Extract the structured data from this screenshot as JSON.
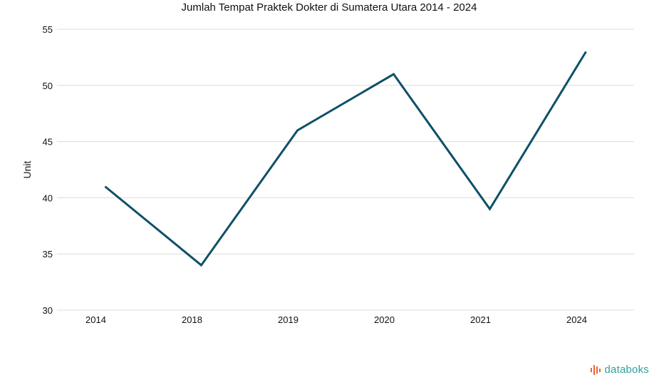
{
  "chart_data": {
    "type": "line",
    "title": "Jumlah Tempat Praktek Dokter di Sumatera Utara 2014 - 2024",
    "xlabel": "",
    "ylabel": "Unit",
    "categories": [
      "2014",
      "2018",
      "2019",
      "2020",
      "2021",
      "2024"
    ],
    "series": [
      {
        "values": [
          41,
          34,
          46,
          51,
          39,
          53
        ]
      }
    ],
    "ylim": [
      30,
      55
    ],
    "yticks": [
      "30",
      "35",
      "40",
      "45",
      "50",
      "55"
    ],
    "grid": true,
    "legend": "none",
    "line_color": "#0d5068"
  },
  "brand": {
    "name": "databoks",
    "icon": "databoks-bars-icon",
    "color": "#2f9fa0",
    "icon_color": "#e8643c"
  }
}
